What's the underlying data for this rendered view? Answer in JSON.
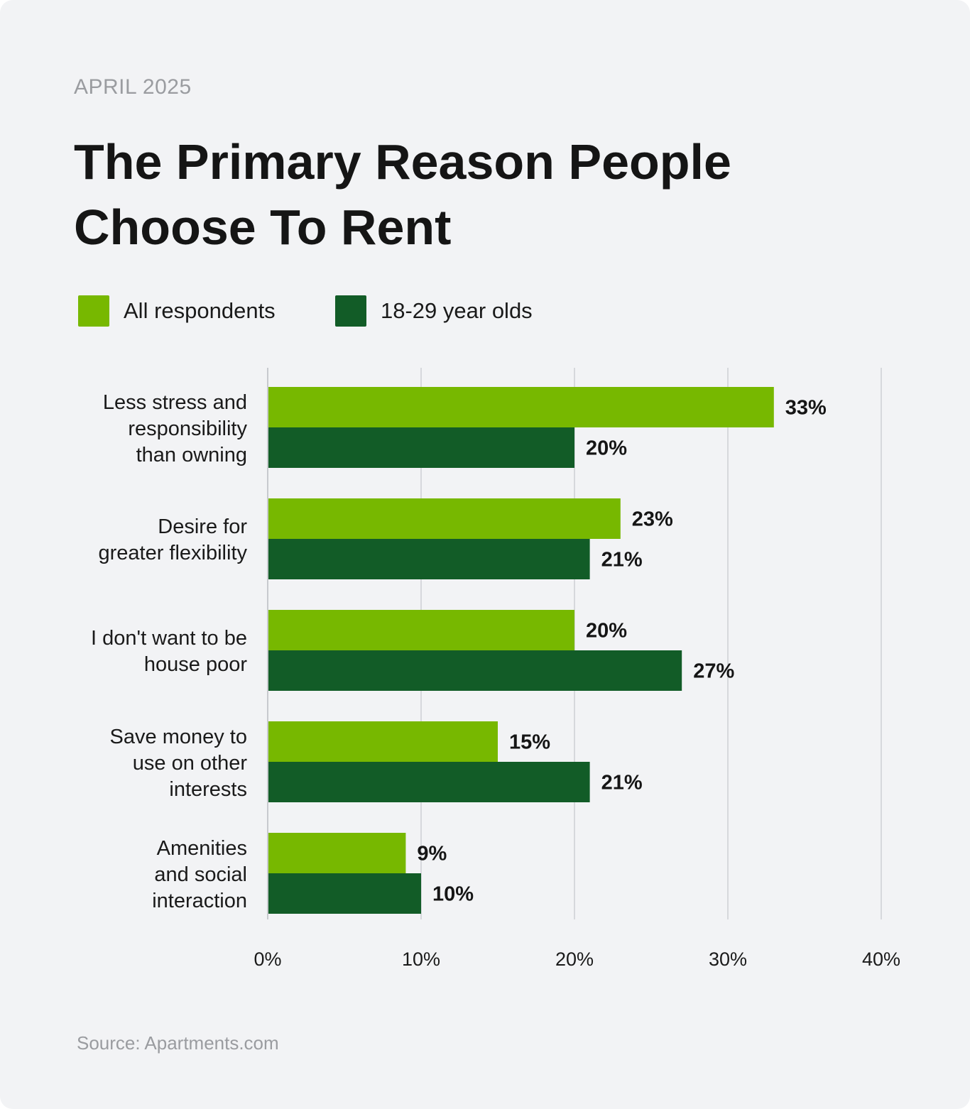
{
  "header": {
    "date": "APRIL 2025",
    "title_line1": "The Primary Reason People",
    "title_line2": "Choose To Rent"
  },
  "legend": {
    "all_label": "All respondents",
    "young_label": "18-29 year olds"
  },
  "source": "Source: Apartments.com",
  "colors": {
    "all_respondents": "#77b800",
    "young": "#125c27",
    "gridline": "#d6d8dc",
    "background": "#f2f3f5"
  },
  "chart_data": {
    "type": "bar",
    "orientation": "horizontal",
    "title": "The Primary Reason People Choose To Rent",
    "categories": [
      [
        "Less stress and",
        "responsibility",
        "than owning"
      ],
      [
        "Desire for",
        "greater flexibility"
      ],
      [
        "I don't want to be",
        "house poor"
      ],
      [
        "Save money to",
        "use on other",
        "interests"
      ],
      [
        "Amenities",
        "and social",
        "interaction"
      ]
    ],
    "series": [
      {
        "name": "All respondents",
        "values": [
          33,
          23,
          20,
          15,
          9
        ]
      },
      {
        "name": "18-29 year olds",
        "values": [
          20,
          21,
          27,
          21,
          10
        ]
      }
    ],
    "xlim": [
      0,
      40
    ],
    "xticks": [
      "0%",
      "10%",
      "20%",
      "30%",
      "40%"
    ],
    "value_suffix": "%",
    "grid": true,
    "legend_position": "top-left"
  }
}
